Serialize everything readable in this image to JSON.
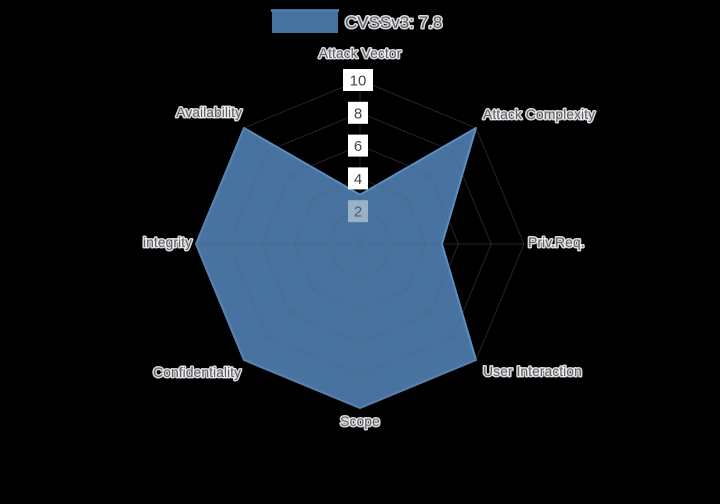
{
  "chart_data": {
    "type": "radar",
    "title": "",
    "legend_position": "top-center",
    "grid": true,
    "categories": [
      "Attack Vector",
      "Attack Complexity",
      "Priv.Req.",
      "User Interaction",
      "Scope",
      "Confidentiality",
      "integrity",
      "Availability"
    ],
    "series": [
      {
        "name": "CVSSv3: 7.8",
        "values": [
          3,
          10,
          5,
          10,
          10,
          10,
          10,
          10
        ]
      }
    ],
    "radial_ticks": [
      2,
      4,
      6,
      8,
      10
    ],
    "radial_range": [
      0,
      10
    ],
    "colors": {
      "background": "#000000",
      "series_fill": "#4E7CAD",
      "series_fill_opacity": 0.92,
      "series_line": "#5A8FC2",
      "grid_line": "#5A6270",
      "grid_line_opacity": 0.38,
      "tick_box": "#FFFFFF",
      "tick_text": "#3F4650",
      "label_text": "#5A6069",
      "label_halo": "#FFFFFF"
    }
  }
}
